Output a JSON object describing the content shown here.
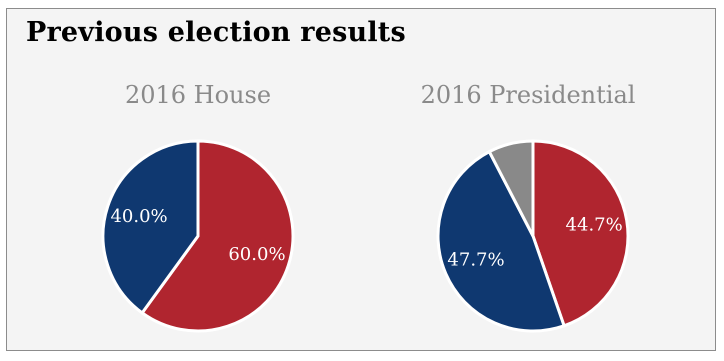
{
  "page": {
    "title": "Previous election results"
  },
  "colors": {
    "republican": "#b0252f",
    "democrat": "#0f3870",
    "other": "#898989",
    "panel_background": "#f4f4f4",
    "chart_title": "#8a8a8a"
  },
  "chart_data": [
    {
      "type": "pie",
      "title": "2016 House",
      "start_angle_deg": 0,
      "direction": "clockwise",
      "slices": [
        {
          "value": 60.0,
          "label": "60.0%",
          "color": "#b0252f"
        },
        {
          "value": 40.0,
          "label": "40.0%",
          "color": "#0f3870"
        }
      ]
    },
    {
      "type": "pie",
      "title": "2016 Presidential",
      "start_angle_deg": 0,
      "direction": "clockwise",
      "slices": [
        {
          "value": 44.7,
          "label": "44.7%",
          "color": "#b0252f"
        },
        {
          "value": 47.7,
          "label": "47.7%",
          "color": "#0f3870"
        },
        {
          "value": 7.6,
          "label": "",
          "color": "#898989"
        }
      ]
    }
  ]
}
